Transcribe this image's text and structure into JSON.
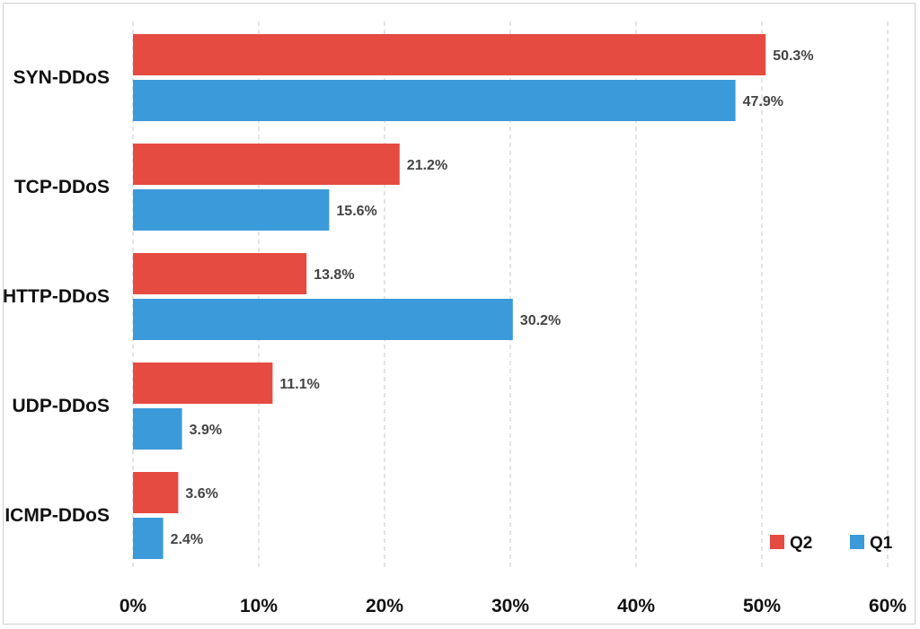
{
  "chart_data": {
    "type": "bar",
    "orientation": "horizontal",
    "categories": [
      "SYN-DDoS",
      "TCP-DDoS",
      "HTTP-DDoS",
      "UDP-DDoS",
      "ICMP-DDoS"
    ],
    "series": [
      {
        "name": "Q2",
        "color": "#e64b42",
        "values": [
          50.3,
          21.2,
          13.8,
          11.1,
          3.6
        ],
        "labels": [
          "50.3%",
          "21.2%",
          "13.8%",
          "11.1%",
          "3.6%"
        ]
      },
      {
        "name": "Q1",
        "color": "#3b9ad9",
        "values": [
          47.9,
          15.6,
          30.2,
          3.9,
          2.4
        ],
        "labels": [
          "47.9%",
          "15.6%",
          "30.2%",
          "3.9%",
          "2.4%"
        ]
      }
    ],
    "xlim": [
      0,
      60
    ],
    "x_ticks": [
      "0%",
      "10%",
      "20%",
      "30%",
      "40%",
      "50%",
      "60%"
    ],
    "grid": "vertical dashed",
    "legend_position": "bottom-right",
    "title": "",
    "xlabel": "",
    "ylabel": ""
  }
}
